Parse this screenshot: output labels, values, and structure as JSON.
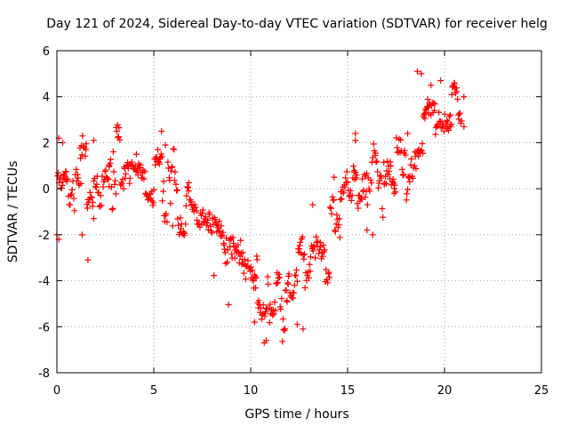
{
  "chart_data": {
    "type": "scatter",
    "title": "Day 121 of 2024, Sidereal Day-to-day VTEC variation (SDTVAR) for receiver helg",
    "xlabel": "GPS time / hours",
    "ylabel": "SDTVAR / TECUs",
    "xlim": [
      0,
      25
    ],
    "ylim": [
      -8,
      6
    ],
    "xticks": [
      0,
      5,
      10,
      15,
      20,
      25
    ],
    "yticks": [
      -8,
      -6,
      -4,
      -2,
      0,
      2,
      4,
      6
    ],
    "grid": true,
    "marker": "plus",
    "color": "#ff0000",
    "anchors": [
      [
        0.0,
        0.3
      ],
      [
        0.5,
        0.6
      ],
      [
        1.0,
        0.8
      ],
      [
        1.5,
        0.5
      ],
      [
        2.0,
        0.3
      ],
      [
        2.5,
        0.4
      ],
      [
        3.0,
        0.6
      ],
      [
        3.5,
        0.8
      ],
      [
        4.0,
        0.7
      ],
      [
        4.5,
        0.5
      ],
      [
        5.0,
        0.6
      ],
      [
        5.5,
        0.5
      ],
      [
        6.0,
        0.0
      ],
      [
        6.5,
        -0.8
      ],
      [
        7.0,
        -1.5
      ],
      [
        7.5,
        -2.0
      ],
      [
        8.0,
        -2.5
      ],
      [
        8.5,
        -3.0
      ],
      [
        9.0,
        -3.3
      ],
      [
        9.5,
        -3.6
      ],
      [
        10.0,
        -4.2
      ],
      [
        10.5,
        -5.0
      ],
      [
        11.0,
        -5.2
      ],
      [
        11.5,
        -5.0
      ],
      [
        12.0,
        -4.5
      ],
      [
        12.5,
        -3.6
      ],
      [
        13.0,
        -2.8
      ],
      [
        13.5,
        -2.2
      ],
      [
        14.0,
        -1.8
      ],
      [
        14.5,
        -1.2
      ],
      [
        15.0,
        -0.6
      ],
      [
        15.5,
        0.0
      ],
      [
        16.0,
        0.3
      ],
      [
        16.5,
        0.5
      ],
      [
        17.0,
        0.6
      ],
      [
        17.5,
        0.8
      ],
      [
        18.0,
        1.2
      ],
      [
        18.5,
        2.2
      ],
      [
        19.0,
        3.0
      ],
      [
        19.5,
        3.4
      ],
      [
        20.0,
        3.5
      ],
      [
        20.5,
        3.5
      ],
      [
        21.0,
        3.2
      ]
    ],
    "samples": 620,
    "spread": 1.1,
    "outliers": [
      [
        0.1,
        2.2
      ],
      [
        0.3,
        2.0
      ],
      [
        0.1,
        -2.2
      ],
      [
        0.0,
        -2.0
      ],
      [
        1.3,
        -2.0
      ],
      [
        1.6,
        -3.1
      ],
      [
        1.9,
        2.1
      ],
      [
        1.9,
        -1.3
      ],
      [
        5.4,
        2.5
      ],
      [
        5.6,
        1.9
      ],
      [
        6.8,
        -0.1
      ],
      [
        10.8,
        -6.6
      ],
      [
        10.7,
        -6.7
      ],
      [
        12.4,
        -5.9
      ],
      [
        12.7,
        -6.1
      ],
      [
        10.2,
        -5.8
      ],
      [
        15.4,
        2.4
      ],
      [
        15.4,
        2.1
      ],
      [
        18.6,
        5.1
      ],
      [
        18.8,
        5.0
      ],
      [
        19.3,
        4.5
      ],
      [
        19.8,
        4.7
      ],
      [
        20.5,
        4.6
      ],
      [
        21.0,
        4.0
      ],
      [
        21.0,
        2.7
      ],
      [
        20.3,
        3.2
      ],
      [
        18.1,
        2.4
      ],
      [
        18.2,
        0.3
      ],
      [
        17.4,
        -0.2
      ],
      [
        16.0,
        -1.8
      ],
      [
        16.3,
        -2.0
      ],
      [
        14.3,
        0.5
      ],
      [
        13.2,
        -0.7
      ],
      [
        4.1,
        1.5
      ],
      [
        2.7,
        0.1
      ]
    ]
  }
}
